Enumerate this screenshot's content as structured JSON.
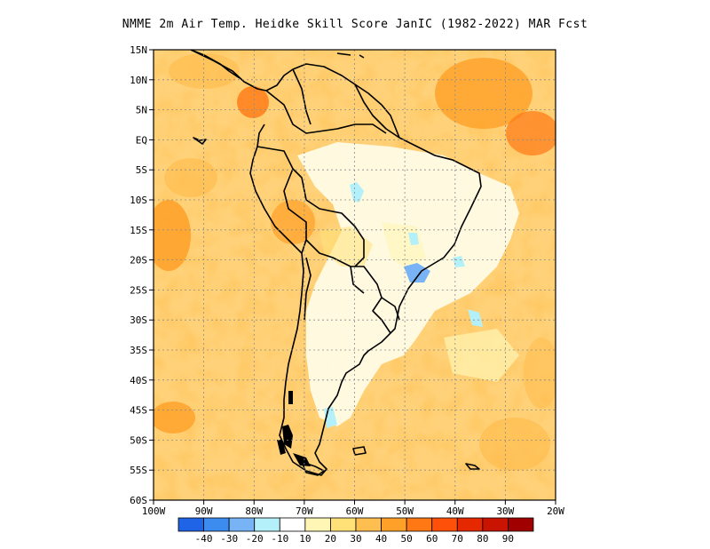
{
  "title": "NMME  2m Air Temp. Heidke Skill Score JanIC (1982-2022) MAR Fcst",
  "lat_labels": [
    "15N",
    "10N",
    "5N",
    "EQ",
    "5S",
    "10S",
    "15S",
    "20S",
    "25S",
    "30S",
    "35S",
    "40S",
    "45S",
    "50S",
    "55S",
    "60S"
  ],
  "lon_labels": [
    "100W",
    "90W",
    "80W",
    "70W",
    "60W",
    "50W",
    "40W",
    "30W",
    "20W"
  ],
  "colorbar": {
    "colors": [
      "#1f64e6",
      "#3c8cf0",
      "#78b4f5",
      "#b4f0fa",
      "#ffffff",
      "#fff5b4",
      "#ffe178",
      "#ffbe50",
      "#ffa028",
      "#ff7814",
      "#ff500a",
      "#e62800",
      "#c81400",
      "#a00000"
    ],
    "labels": [
      "-40",
      "-30",
      "-20",
      "-10",
      "10",
      "20",
      "30",
      "40",
      "50",
      "60",
      "70",
      "80",
      "90"
    ]
  },
  "icons": {
    "map": "skill-score-map"
  }
}
